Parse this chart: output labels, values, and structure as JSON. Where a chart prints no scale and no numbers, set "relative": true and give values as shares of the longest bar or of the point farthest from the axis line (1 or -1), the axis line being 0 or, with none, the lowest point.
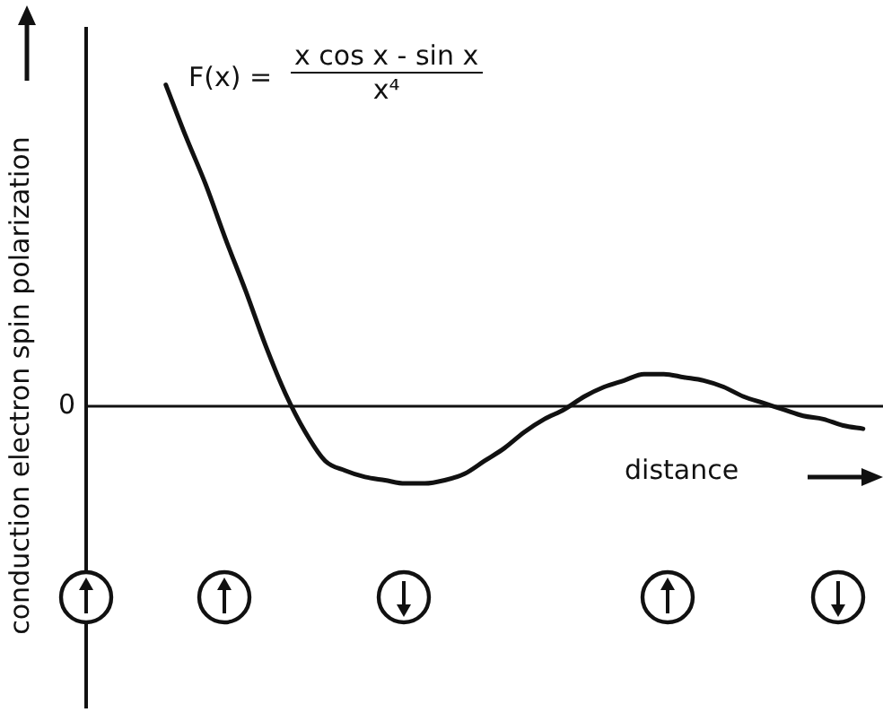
{
  "chart_data": {
    "type": "line",
    "relative": true,
    "ylabel": "conduction electron spin polarization",
    "xlabel": "distance",
    "color": "#111111",
    "categories": [
      null,
      null,
      null,
      null,
      null,
      null,
      null,
      null,
      null,
      null,
      null,
      null,
      null,
      null,
      null,
      null,
      null,
      null,
      null,
      null,
      null,
      null,
      null,
      null,
      null,
      null,
      null,
      null,
      null,
      null,
      null,
      null,
      null,
      null,
      null,
      null,
      null,
      null,
      null,
      null,
      null
    ],
    "values": [
      null,
      null,
      null,
      null,
      1,
      0.84,
      0.69,
      0.52,
      0.36,
      0.19,
      0.04,
      -0.08,
      -0.17,
      -0.2,
      -0.22,
      -0.23,
      -0.24,
      -0.24,
      -0.23,
      -0.21,
      -0.17,
      -0.13,
      -0.08,
      -0.04,
      -0.01,
      0.03,
      0.06,
      0.08,
      0.1,
      0.1,
      0.09,
      0.08,
      0.06,
      0.03,
      0.01,
      -0.01,
      -0.03,
      -0.04,
      -0.06,
      -0.07,
      null
    ],
    "marker": "none",
    "line_style": "solid",
    "legend": false,
    "annotations": [
      "F(x) =",
      "x cos x - sin x",
      "x⁴",
      "0"
    ]
  }
}
